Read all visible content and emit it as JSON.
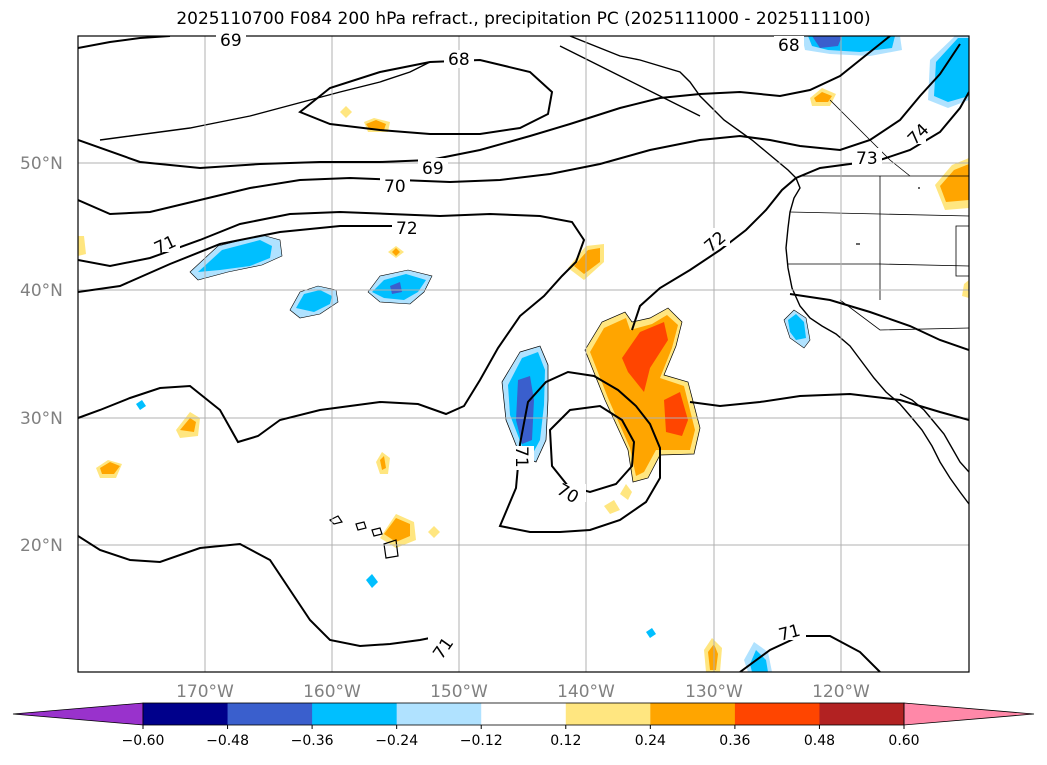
{
  "title": "2025110700 F084 200 hPa refract., precipitation PC (2025111000 - 2025111100)",
  "lat_labels": [
    "50°N",
    "40°N",
    "30°N",
    "20°N"
  ],
  "lon_labels": [
    "170°W",
    "160°W",
    "150°W",
    "140°W",
    "130°W",
    "120°W"
  ],
  "contour_labels": [
    "69",
    "68",
    "68",
    "69",
    "70",
    "72",
    "71",
    "73",
    "74",
    "72",
    "71",
    "70",
    "71",
    "71"
  ],
  "colorbar": {
    "ticks": [
      "−0.60",
      "−0.48",
      "−0.36",
      "−0.24",
      "−0.12",
      "0.12",
      "0.24",
      "0.36",
      "0.48",
      "0.60"
    ],
    "colors": [
      "#9932cc",
      "#00008b",
      "#3a5fcd",
      "#00bfff",
      "#b0e2ff",
      "#ffffff",
      "#ffe680",
      "#ffa500",
      "#ff4500",
      "#b22222",
      "#ff88a8"
    ]
  },
  "legend_colors": {
    "coast": "#000000",
    "grid": "#b0b0b0",
    "neg_light": "#b0e2ff",
    "neg_mid": "#00bfff",
    "neg_dark": "#3a5fcd",
    "neg_darkest": "#00008b",
    "pos_light": "#ffe680",
    "pos_mid": "#ffa500",
    "pos_dark": "#ff4500"
  }
}
